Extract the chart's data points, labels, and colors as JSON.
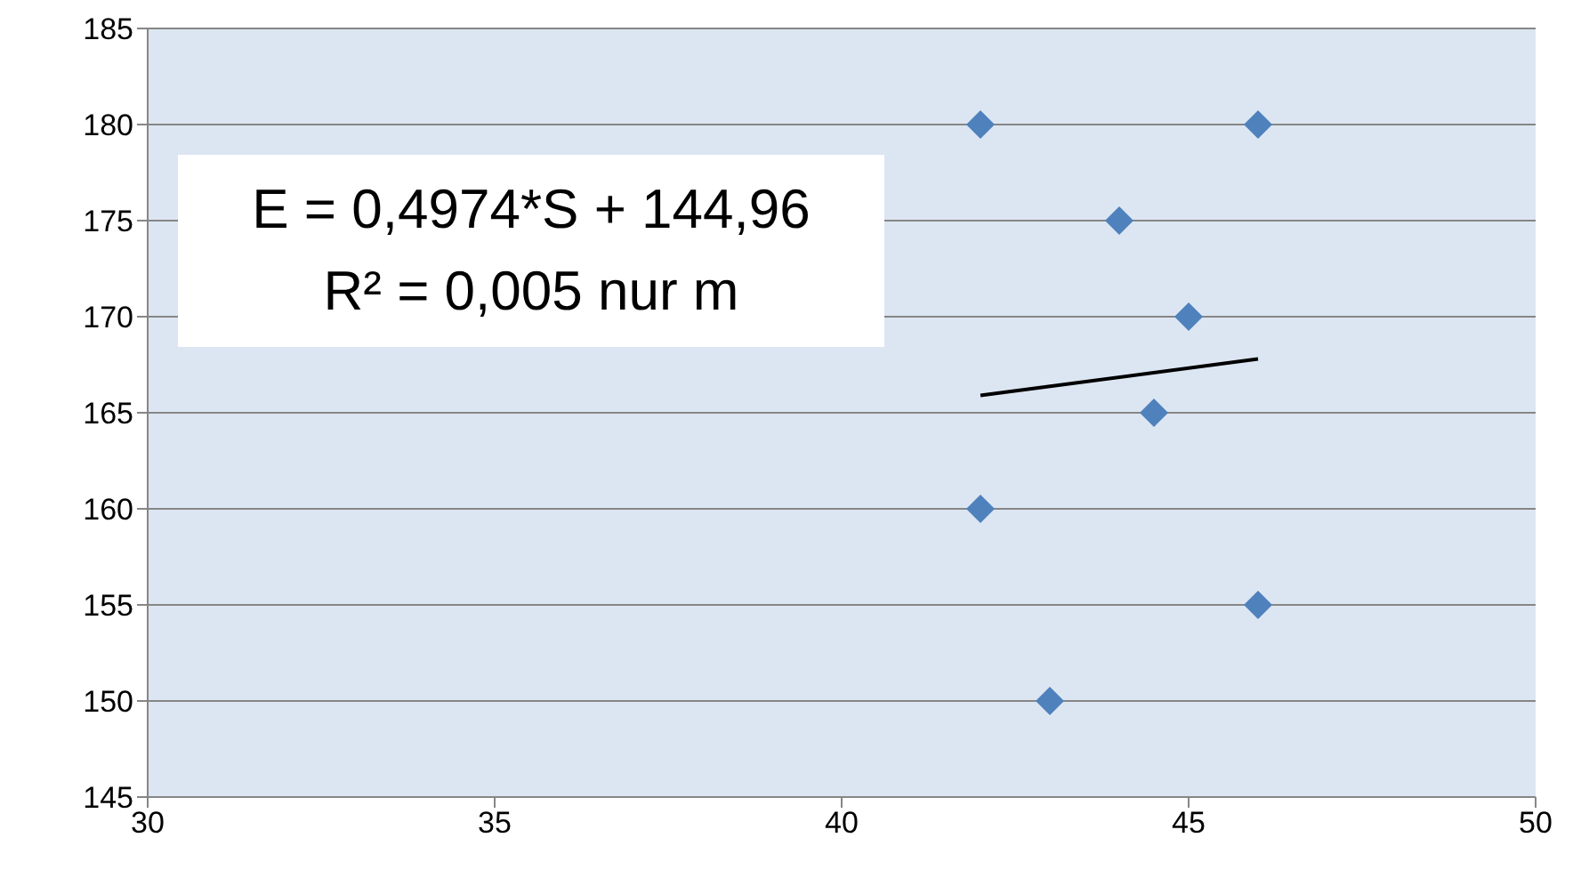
{
  "chart_data": {
    "type": "scatter",
    "series": [
      {
        "color": "#4f81bd",
        "x": [
          42,
          46,
          44,
          45,
          44.5,
          42,
          46,
          43
        ],
        "values": [
          180,
          180,
          175,
          170,
          165,
          160,
          155,
          150
        ]
      },
      {
        "type": "line",
        "marker": "none",
        "color": "#000000",
        "x": [
          42,
          46
        ],
        "values": [
          165.9,
          167.8
        ]
      }
    ],
    "marker": "diamond",
    "grid": "y",
    "legend": false,
    "xlim": [
      30,
      50
    ],
    "xticks": [
      30,
      35,
      40,
      45,
      50
    ],
    "ylim": [
      145,
      185
    ],
    "yticks": [
      145,
      150,
      155,
      160,
      165,
      170,
      175,
      180,
      185
    ],
    "annotations": [
      "E = 0,4974*S + 144,96",
      "R² = 0,005 nur m"
    ]
  }
}
